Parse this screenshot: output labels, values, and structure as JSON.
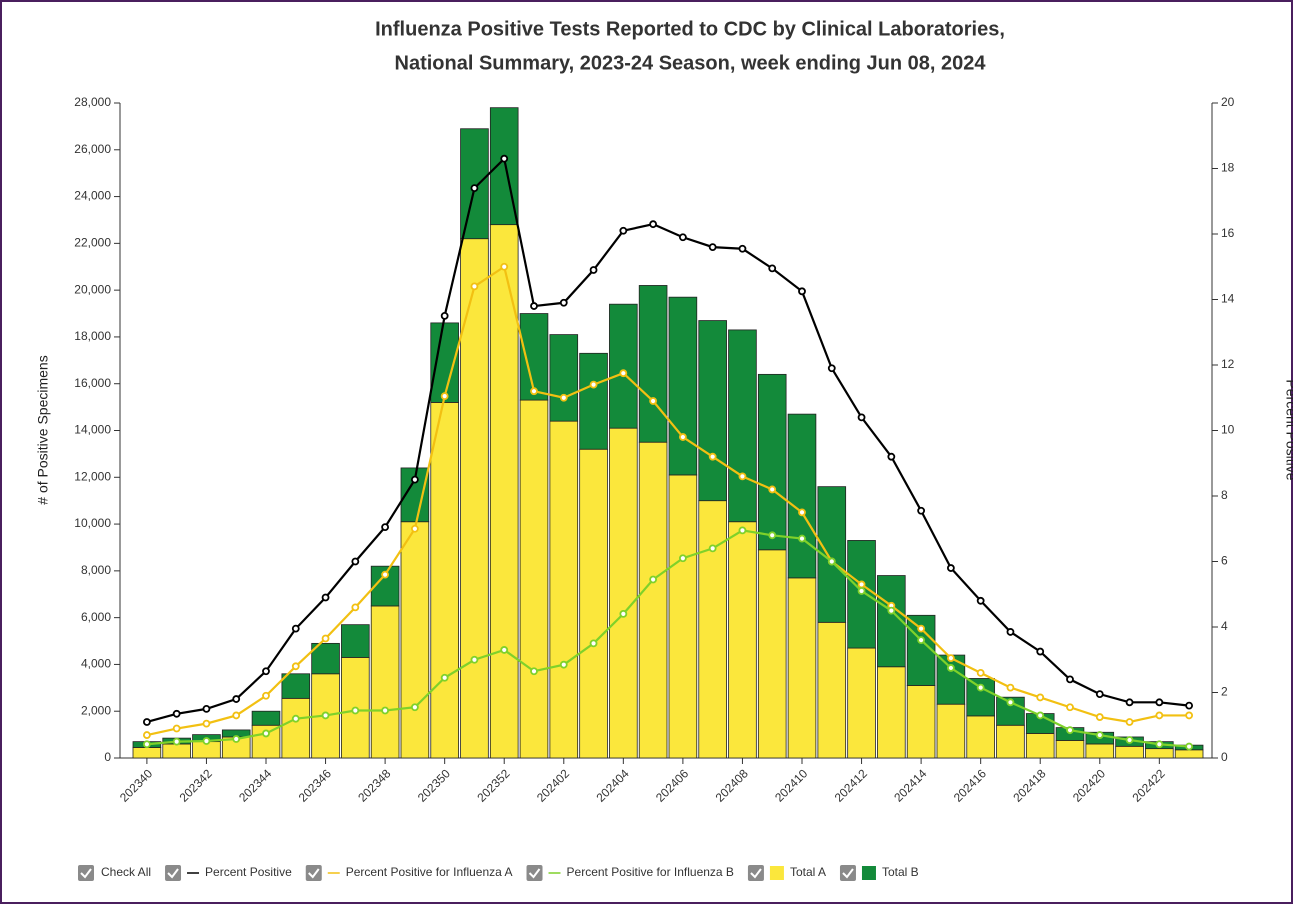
{
  "chart_data": {
    "type": "bar",
    "title_lines": [
      "Influenza Positive Tests Reported to CDC by Clinical Laboratories,",
      "National Summary, 2023-24 Season, week ending Jun 08, 2024"
    ],
    "y_label": "# of Positive Specimens",
    "y2_label": "Percent Positive",
    "legend_check_all": "Check All",
    "categories": [
      "202340",
      null,
      "202342",
      null,
      "202344",
      null,
      "202346",
      null,
      "202348",
      null,
      "202350",
      null,
      "202352",
      null,
      "202402",
      null,
      "202404",
      null,
      "202406",
      null,
      "202408",
      null,
      "202410",
      null,
      "202412",
      null,
      "202414",
      null,
      "202416",
      null,
      "202418",
      null,
      "202420",
      null,
      "202422",
      null
    ],
    "ylim": [
      0,
      28000
    ],
    "yticks": [
      0,
      {
        "value": 2000,
        "label": "2,000"
      },
      {
        "value": 4000,
        "label": "4,000"
      },
      {
        "value": 6000,
        "label": "6,000"
      },
      {
        "value": 8000,
        "label": "8,000"
      },
      {
        "value": 10000,
        "label": "10,000"
      },
      {
        "value": 12000,
        "label": "12,000"
      },
      {
        "value": 14000,
        "label": "14,000"
      },
      {
        "value": 16000,
        "label": "16,000"
      },
      {
        "value": 18000,
        "label": "18,000"
      },
      {
        "value": 20000,
        "label": "20,000"
      },
      {
        "value": 22000,
        "label": "22,000"
      },
      {
        "value": 24000,
        "label": "24,000"
      },
      {
        "value": 26000,
        "label": "26,000"
      },
      {
        "value": 28000,
        "label": "28,000"
      }
    ],
    "y2lim": [
      0,
      20
    ],
    "y2ticks": [
      0,
      2,
      4,
      6,
      8,
      10,
      12,
      14,
      16,
      18,
      20
    ],
    "series": [
      {
        "name": "Percent Positive",
        "type": "line",
        "axis": "y2",
        "color": "#000000",
        "values": [
          1.1,
          1.35,
          1.5,
          1.8,
          2.65,
          3.95,
          4.9,
          6.0,
          7.05,
          8.5,
          13.5,
          17.4,
          18.3,
          13.8,
          13.9,
          14.9,
          16.1,
          16.3,
          15.9,
          15.6,
          15.55,
          14.95,
          14.25,
          11.9,
          10.4,
          9.2,
          7.55,
          5.8,
          4.8,
          3.85,
          3.25,
          2.4,
          1.95,
          1.7,
          1.7,
          1.6
        ]
      },
      {
        "name": "Percent Positive for Influenza A",
        "type": "line",
        "axis": "y2",
        "color": "#f2c012",
        "values": [
          0.7,
          0.9,
          1.05,
          1.3,
          1.9,
          2.8,
          3.65,
          4.6,
          5.6,
          7.0,
          11.05,
          14.4,
          15.0,
          11.2,
          11.0,
          11.4,
          11.75,
          10.9,
          9.8,
          9.2,
          8.6,
          8.2,
          7.5,
          6.0,
          5.3,
          4.65,
          3.95,
          3.05,
          2.6,
          2.15,
          1.85,
          1.55,
          1.25,
          1.1,
          1.3,
          1.3
        ]
      },
      {
        "name": "Percent Positive for Influenza B",
        "type": "line",
        "axis": "y2",
        "color": "#7fd12a",
        "values": [
          0.42,
          0.5,
          0.52,
          0.58,
          0.75,
          1.2,
          1.3,
          1.45,
          1.45,
          1.55,
          2.45,
          3.0,
          3.3,
          2.65,
          2.85,
          3.5,
          4.4,
          5.45,
          6.1,
          6.4,
          6.95,
          6.8,
          6.7,
          6.0,
          5.1,
          4.5,
          3.6,
          2.75,
          2.15,
          1.7,
          1.3,
          0.85,
          0.7,
          0.55,
          0.42,
          0.35
        ]
      },
      {
        "name": "Total A",
        "type": "bar",
        "color": "#fbe73c",
        "values": [
          450,
          600,
          700,
          900,
          1400,
          2550,
          3600,
          4300,
          6500,
          10100,
          15200,
          22200,
          22800,
          15300,
          14400,
          13200,
          14100,
          13500,
          12100,
          11000,
          10100,
          8900,
          7700,
          5800,
          4700,
          3900,
          3100,
          2300,
          1800,
          1400,
          1050,
          750,
          600,
          500,
          400,
          350
        ]
      },
      {
        "name": "Total B",
        "type": "bar",
        "color": "#138a3a",
        "values": [
          250,
          250,
          300,
          300,
          600,
          1050,
          1300,
          1400,
          1700,
          2300,
          3400,
          4700,
          5000,
          3700,
          3700,
          4100,
          5300,
          6700,
          7600,
          7700,
          8200,
          7500,
          7000,
          5800,
          4600,
          3900,
          3000,
          2100,
          1600,
          1200,
          850,
          550,
          500,
          400,
          300,
          200
        ]
      }
    ]
  }
}
